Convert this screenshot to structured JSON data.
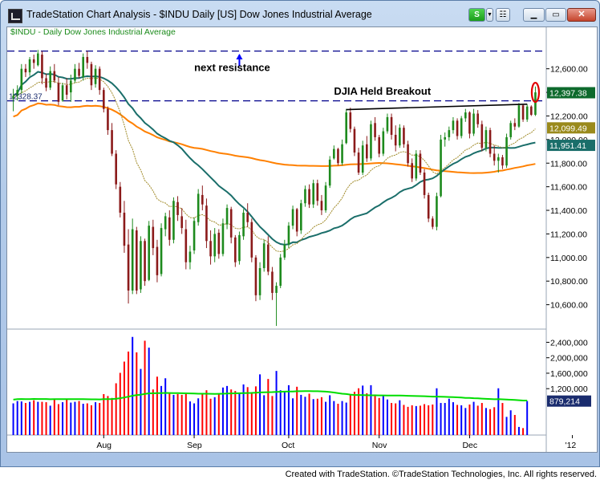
{
  "window": {
    "title": "TradeStation Chart Analysis - $INDU Daily [US] Dow Jones Industrial Average",
    "s_button": "S",
    "s_arrow": "▼",
    "symbol_button": "☷",
    "min_icon": "▁",
    "max_icon": "▭",
    "close_icon": "✕"
  },
  "footer": {
    "credit": "Created with TradeStation. ©TradeStation Technologies, Inc. All rights reserved."
  },
  "colors": {
    "up_bar": "#1d8a1d",
    "down_bar": "#8b1a1a",
    "sma50": "#1a6e6a",
    "sma200": "#ff8000",
    "ema20": "#a08a28",
    "resistance_line": "#00008b",
    "volume_up": "#0000ff",
    "volume_down": "#ff0000",
    "volume_avg": "#00dd00",
    "price_tag": "#0d6a2c",
    "tag_sma50": "#1a6e6a",
    "tag_ema20": "#9a8a1c",
    "tag_volume": "#1a2c6e",
    "highlight_ellipse": "#e00000"
  },
  "chart_data": [
    {
      "type": "candlestick",
      "title": "$INDU - Daily  Dow Jones Industrial Average",
      "symbol": "$INDU",
      "x_ticks": [
        "Aug",
        "Sep",
        "Oct",
        "Nov",
        "Dec",
        "'12"
      ],
      "y_ticks": [
        "12,600.00",
        "12,400.00",
        "12,200.00",
        "12,000.00",
        "11,800.00",
        "11,600.00",
        "11,400.00",
        "11,200.00",
        "11,000.00",
        "10,800.00",
        "10,600.00"
      ],
      "ylim": [
        10400,
        12870
      ],
      "last_price": "12,397.38",
      "resistance_label": "12328.37",
      "resistance_levels": [
        12328.37,
        12750
      ],
      "breakout_line": [
        12254,
        12300
      ],
      "moving_averages": {
        "sma50_last": "11,951.41",
        "ema20_last": "12,099.49"
      },
      "annotations": [
        "next resistance",
        "DJIA Held Breakout"
      ],
      "ohlc": [
        [
          12350,
          12430,
          12240,
          12370
        ],
        [
          12370,
          12460,
          12330,
          12420
        ],
        [
          12420,
          12640,
          12390,
          12600
        ],
        [
          12600,
          12640,
          12530,
          12570
        ],
        [
          12570,
          12700,
          12540,
          12680
        ],
        [
          12680,
          12720,
          12600,
          12650
        ],
        [
          12630,
          12760,
          12620,
          12730
        ],
        [
          12720,
          12750,
          12470,
          12520
        ],
        [
          12520,
          12560,
          12410,
          12440
        ],
        [
          12440,
          12620,
          12420,
          12580
        ],
        [
          12580,
          12640,
          12480,
          12500
        ],
        [
          12480,
          12530,
          12290,
          12320
        ],
        [
          12330,
          12480,
          12320,
          12460
        ],
        [
          12460,
          12520,
          12340,
          12380
        ],
        [
          12400,
          12550,
          12320,
          12500
        ],
        [
          12500,
          12640,
          12480,
          12600
        ],
        [
          12600,
          12650,
          12520,
          12540
        ],
        [
          12530,
          12730,
          12500,
          12700
        ],
        [
          12700,
          12750,
          12600,
          12650
        ],
        [
          12640,
          12660,
          12420,
          12460
        ],
        [
          12470,
          12630,
          12440,
          12600
        ],
        [
          12600,
          12620,
          12380,
          12420
        ],
        [
          12420,
          12440,
          12230,
          12260
        ],
        [
          12260,
          12280,
          12040,
          12080
        ],
        [
          12080,
          12140,
          11860,
          11880
        ],
        [
          11880,
          11910,
          11580,
          11620
        ],
        [
          11600,
          11640,
          11340,
          11380
        ],
        [
          11380,
          11480,
          11040,
          11100
        ],
        [
          11110,
          11240,
          10610,
          10720
        ],
        [
          10720,
          11330,
          10690,
          11240
        ],
        [
          11230,
          11260,
          10690,
          10720
        ],
        [
          10730,
          11180,
          10700,
          11140
        ],
        [
          11140,
          11160,
          10760,
          10800
        ],
        [
          10810,
          11310,
          10800,
          11270
        ],
        [
          11260,
          11320,
          11020,
          11080
        ],
        [
          11090,
          11150,
          10790,
          10850
        ],
        [
          10860,
          11290,
          10840,
          11250
        ],
        [
          11240,
          11380,
          11180,
          11350
        ],
        [
          11340,
          11400,
          11100,
          11150
        ],
        [
          11150,
          11510,
          11120,
          11480
        ],
        [
          11470,
          11520,
          11310,
          11360
        ],
        [
          11350,
          11420,
          11200,
          11250
        ],
        [
          11240,
          11320,
          10900,
          10960
        ],
        [
          10960,
          11100,
          10900,
          11050
        ],
        [
          11060,
          11340,
          11030,
          11310
        ],
        [
          11300,
          11580,
          11270,
          11540
        ],
        [
          11530,
          11610,
          11400,
          11450
        ],
        [
          11440,
          11500,
          11080,
          11140
        ],
        [
          11140,
          11230,
          10940,
          11010
        ],
        [
          11010,
          11250,
          10960,
          11200
        ],
        [
          11210,
          11240,
          10990,
          11030
        ],
        [
          11030,
          11330,
          11010,
          11290
        ],
        [
          11280,
          11450,
          11240,
          11420
        ],
        [
          11410,
          11430,
          11120,
          11170
        ],
        [
          11170,
          11190,
          10920,
          10960
        ],
        [
          10970,
          11220,
          10940,
          11190
        ],
        [
          11180,
          11410,
          11150,
          11380
        ],
        [
          11380,
          11460,
          11260,
          11300
        ],
        [
          11300,
          11330,
          10960,
          11000
        ],
        [
          11000,
          11020,
          10630,
          10680
        ],
        [
          10680,
          10960,
          10640,
          10910
        ],
        [
          10910,
          11150,
          10880,
          11120
        ],
        [
          11110,
          11180,
          10850,
          10880
        ],
        [
          10880,
          10920,
          10640,
          10700
        ],
        [
          10700,
          10790,
          10420,
          10760
        ],
        [
          10760,
          11030,
          10740,
          11000
        ],
        [
          11000,
          11150,
          10980,
          11110
        ],
        [
          11110,
          11300,
          11080,
          11270
        ],
        [
          11270,
          11440,
          11240,
          11410
        ],
        [
          11410,
          11420,
          11180,
          11220
        ],
        [
          11230,
          11490,
          11200,
          11460
        ],
        [
          11460,
          11610,
          11430,
          11580
        ],
        [
          11580,
          11620,
          11420,
          11450
        ],
        [
          11450,
          11660,
          11420,
          11630
        ],
        [
          11630,
          11660,
          11440,
          11480
        ],
        [
          11480,
          11530,
          11360,
          11400
        ],
        [
          11400,
          11640,
          11380,
          11610
        ],
        [
          11610,
          11860,
          11590,
          11830
        ],
        [
          11840,
          11950,
          11830,
          11920
        ],
        [
          11920,
          11930,
          11780,
          11800
        ],
        [
          11800,
          12000,
          11780,
          11960
        ],
        [
          11970,
          12260,
          11960,
          12230
        ],
        [
          12230,
          12270,
          12060,
          12090
        ],
        [
          12090,
          12110,
          11860,
          11890
        ],
        [
          11890,
          11930,
          11700,
          11720
        ],
        [
          11720,
          11990,
          11700,
          11950
        ],
        [
          11960,
          12030,
          11810,
          11840
        ],
        [
          11840,
          12160,
          11820,
          12130
        ],
        [
          12140,
          12190,
          11990,
          12020
        ],
        [
          12020,
          12040,
          11850,
          11880
        ],
        [
          11880,
          12100,
          11860,
          12070
        ],
        [
          12070,
          12220,
          12050,
          12190
        ],
        [
          12190,
          12220,
          12000,
          12040
        ],
        [
          12040,
          12120,
          11900,
          11950
        ],
        [
          11950,
          12130,
          11930,
          12100
        ],
        [
          12100,
          12120,
          11930,
          11960
        ],
        [
          11960,
          11990,
          11770,
          11800
        ],
        [
          11800,
          11840,
          11640,
          11670
        ],
        [
          11670,
          11910,
          11650,
          11880
        ],
        [
          11880,
          11910,
          11700,
          11720
        ],
        [
          11720,
          11750,
          11500,
          11530
        ],
        [
          11530,
          11550,
          11300,
          11330
        ],
        [
          11330,
          11350,
          11240,
          11260
        ],
        [
          11260,
          11550,
          11230,
          11520
        ],
        [
          11520,
          12040,
          11510,
          12000
        ],
        [
          12000,
          12060,
          11940,
          12020
        ],
        [
          12020,
          12110,
          11990,
          12080
        ],
        [
          12080,
          12190,
          12050,
          12160
        ],
        [
          12160,
          12180,
          12000,
          12030
        ],
        [
          12030,
          12200,
          12010,
          12180
        ],
        [
          12180,
          12260,
          12150,
          12230
        ],
        [
          12230,
          12240,
          12010,
          12050
        ],
        [
          12050,
          12260,
          12030,
          12220
        ],
        [
          12220,
          12250,
          12100,
          12130
        ],
        [
          12130,
          12160,
          11900,
          11930
        ],
        [
          11930,
          12110,
          11900,
          12080
        ],
        [
          12080,
          12100,
          11850,
          11880
        ],
        [
          11880,
          11950,
          11780,
          11820
        ],
        [
          11820,
          11880,
          11720,
          11850
        ],
        [
          11850,
          11870,
          11750,
          11780
        ],
        [
          11780,
          12050,
          11760,
          12020
        ],
        [
          12020,
          12160,
          12000,
          12140
        ],
        [
          12140,
          12180,
          12080,
          12110
        ],
        [
          12110,
          12310,
          12100,
          12290
        ],
        [
          12290,
          12300,
          12150,
          12170
        ],
        [
          12170,
          12300,
          12150,
          12280
        ],
        [
          12280,
          12290,
          12200,
          12210
        ],
        [
          12210,
          12450,
          12200,
          12400
        ]
      ]
    },
    {
      "type": "bar",
      "title": "Volume",
      "y_ticks": [
        "2,400,000",
        "2,000,000",
        "1,600,000",
        "1,200,000"
      ],
      "ylim": [
        0,
        2700000
      ],
      "last_volume": "879,214",
      "volume": [
        820000,
        880000,
        870000,
        830000,
        860000,
        900000,
        860000,
        860000,
        850000,
        760000,
        930000,
        800000,
        850000,
        920000,
        840000,
        860000,
        880000,
        810000,
        820000,
        770000,
        850000,
        830000,
        1060000,
        1010000,
        960000,
        1340000,
        1610000,
        1900000,
        2160000,
        2540000,
        2140000,
        1710000,
        2440000,
        2260000,
        1180000,
        1510000,
        1270000,
        1470000,
        1090000,
        1040000,
        1060000,
        1040000,
        1070000,
        870000,
        820000,
        950000,
        1080000,
        1160000,
        940000,
        980000,
        1050000,
        1230000,
        1270000,
        1180000,
        1140000,
        1090000,
        1310000,
        1240000,
        1110000,
        1260000,
        1570000,
        1030000,
        1450000,
        1010000,
        1660000,
        1160000,
        1120000,
        1290000,
        950000,
        1250000,
        1040000,
        990000,
        1070000,
        930000,
        940000,
        980000,
        860000,
        1030000,
        880000,
        810000,
        880000,
        840000,
        1040000,
        1120000,
        1210000,
        1280000,
        1080000,
        1290000,
        1050000,
        960000,
        1010000,
        920000,
        830000,
        820000,
        900000,
        780000,
        730000,
        770000,
        750000,
        760000,
        800000,
        770000,
        790000,
        1210000,
        830000,
        830000,
        940000,
        850000,
        780000,
        770000,
        700000,
        790000,
        860000,
        760000,
        830000,
        700000,
        670000,
        720000,
        1210000,
        830000,
        470000,
        640000,
        520000,
        210000,
        180000,
        880000
      ],
      "volume_avg_start": 1010000,
      "volume_avg_end": 940000
    }
  ]
}
